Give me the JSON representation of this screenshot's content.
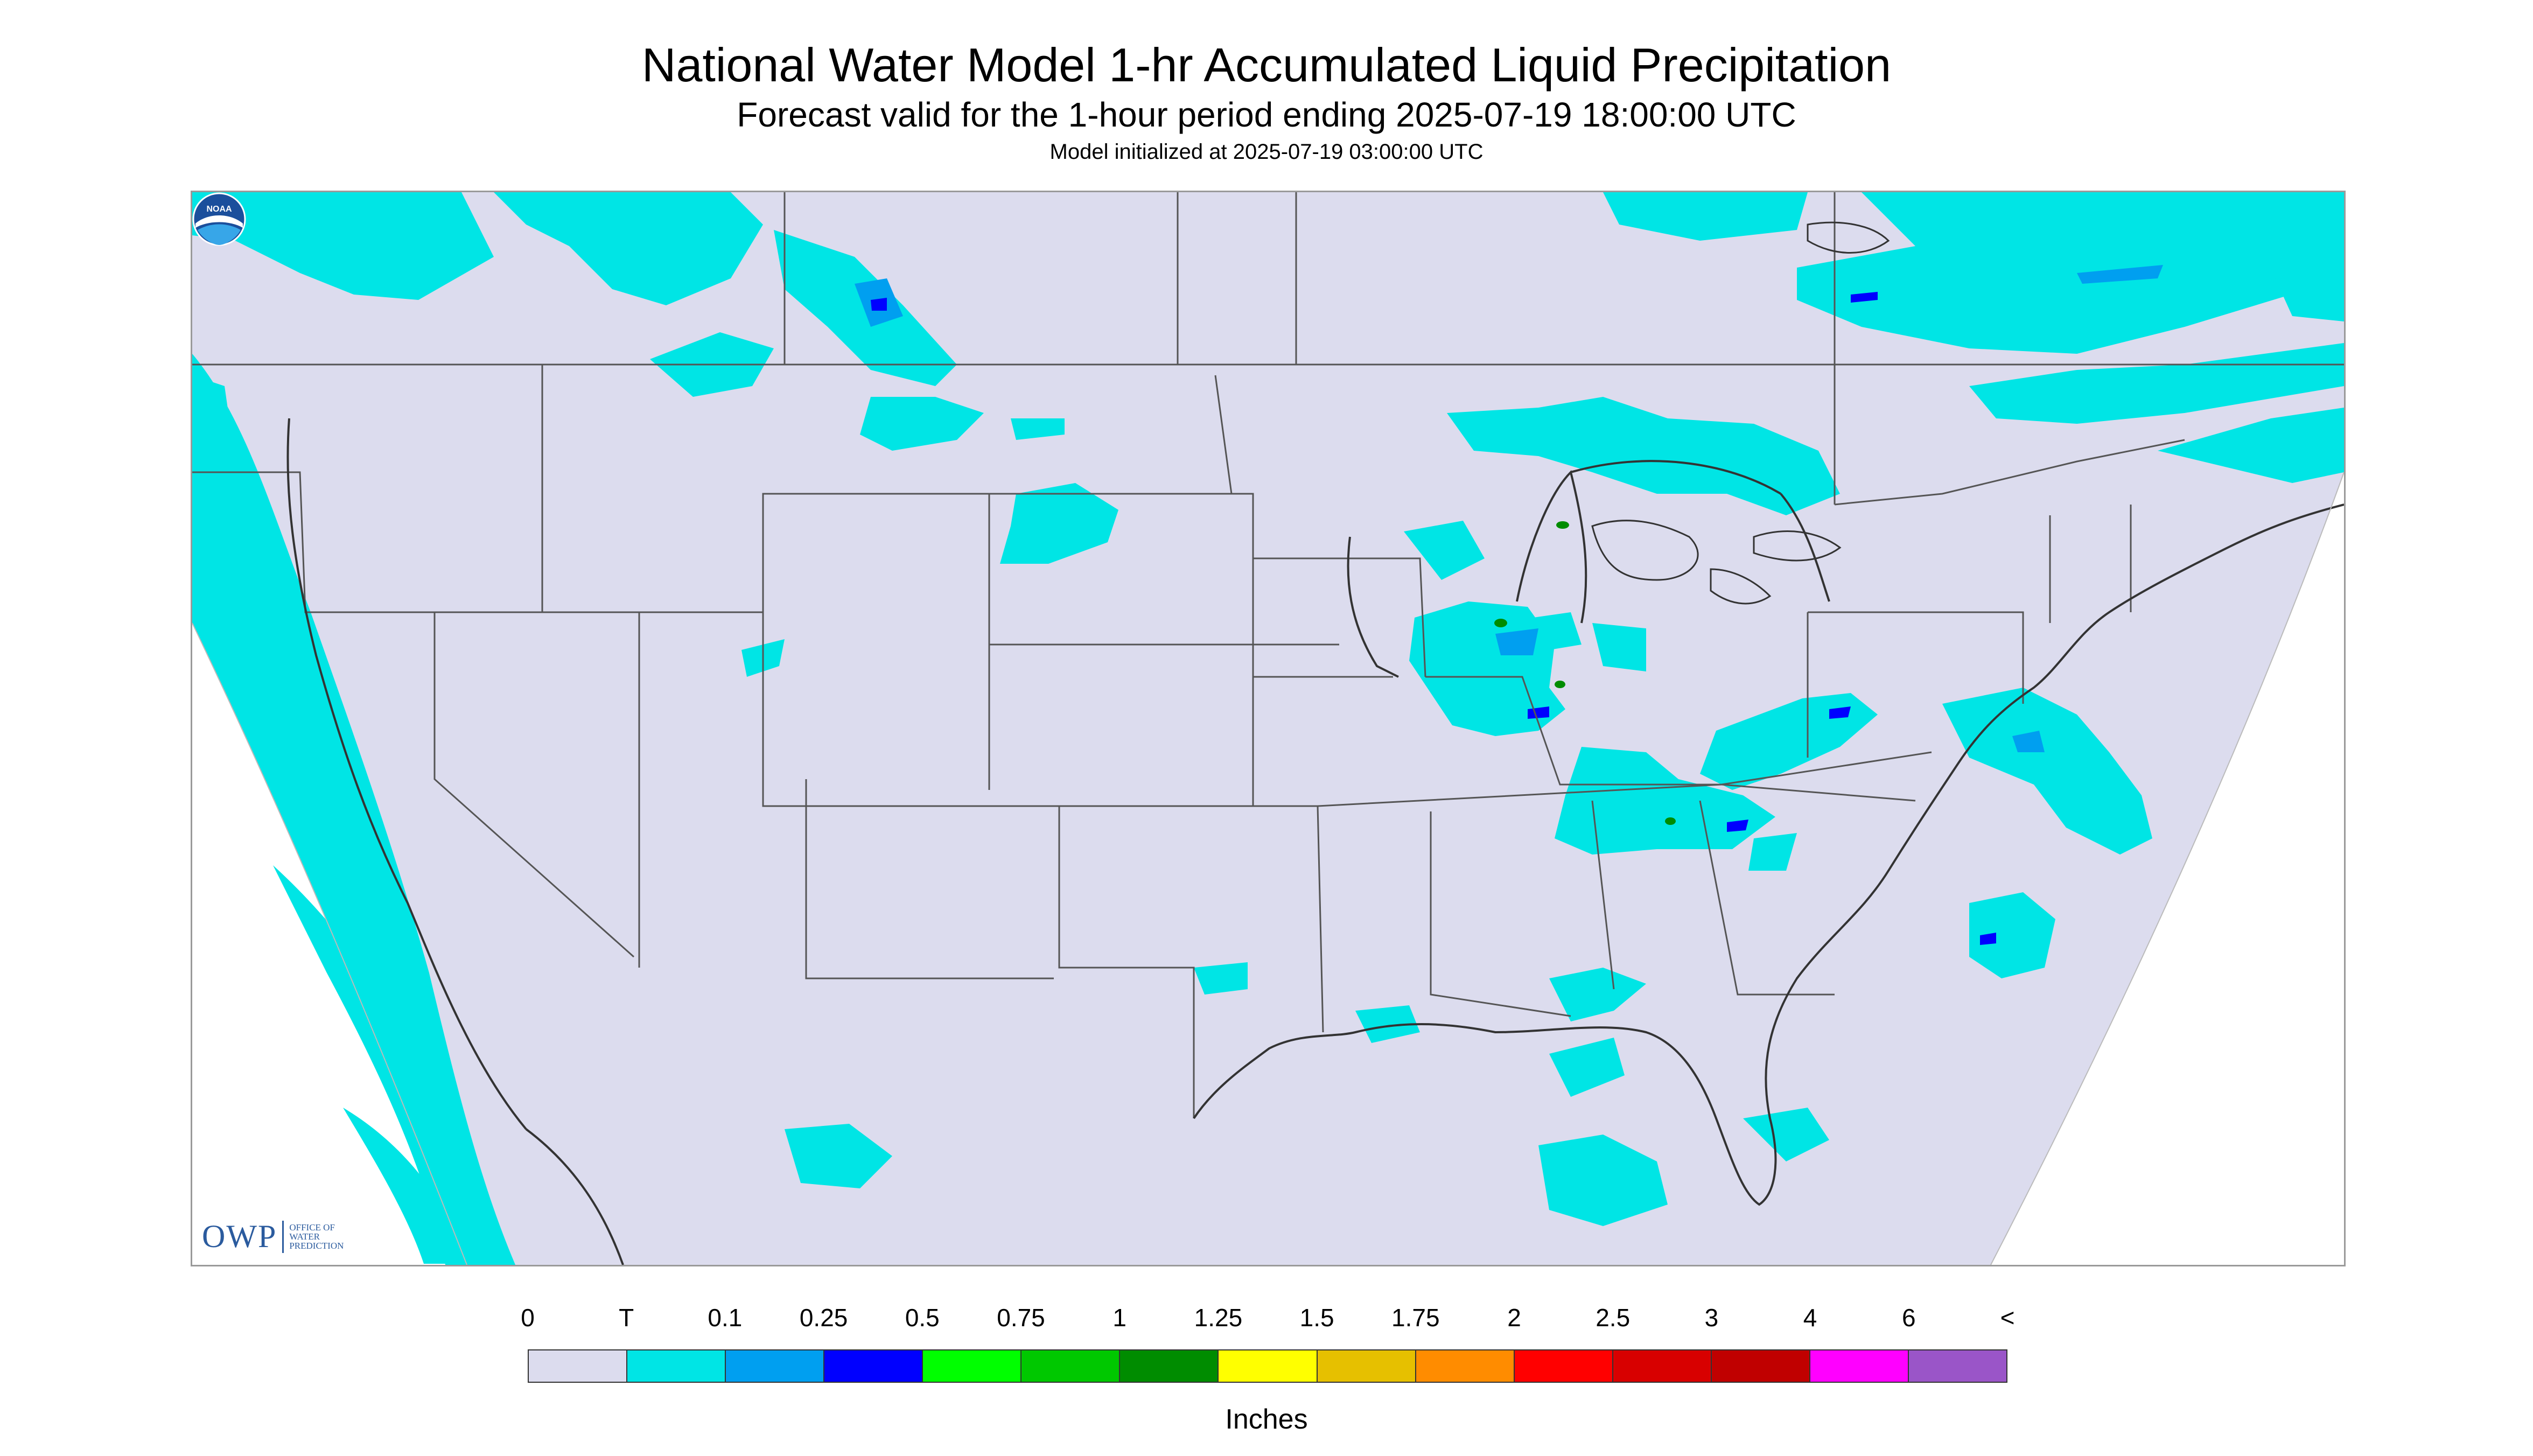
{
  "title": "National Water Model 1-hr Accumulated Liquid Precipitation",
  "subtitle": "Forecast valid for the 1-hour period ending 2025-07-19 18:00:00 UTC",
  "init_line": "Model initialized at 2025-07-19 03:00:00 UTC",
  "logo_left": {
    "letters": "OWP",
    "line1": "OFFICE OF",
    "line2": "WATER",
    "line3": "PREDICTION"
  },
  "logo_right": {
    "name": "noaa-logo",
    "text": "NOAA"
  },
  "legend": {
    "labels": [
      "0",
      "T",
      "0.1",
      "0.25",
      "0.5",
      "0.75",
      "1",
      "1.25",
      "1.5",
      "1.75",
      "2",
      "2.5",
      "3",
      "4",
      "6",
      "<"
    ],
    "colors": [
      "#dcdcee",
      "#00e5e5",
      "#009ff0",
      "#0000ff",
      "#00ff00",
      "#00c800",
      "#008c00",
      "#ffff00",
      "#e6c000",
      "#ff8c00",
      "#ff0000",
      "#d80000",
      "#c00000",
      "#ff00ff",
      "#9a55c8"
    ],
    "units": "Inches"
  },
  "map_colors": {
    "background": "#dcdcee",
    "outside": "#ffffff",
    "trace": "#00e5e5",
    "light": "#009ff0",
    "moderate": "#0000ff",
    "heavy": "#008c00",
    "border": "#555555"
  }
}
